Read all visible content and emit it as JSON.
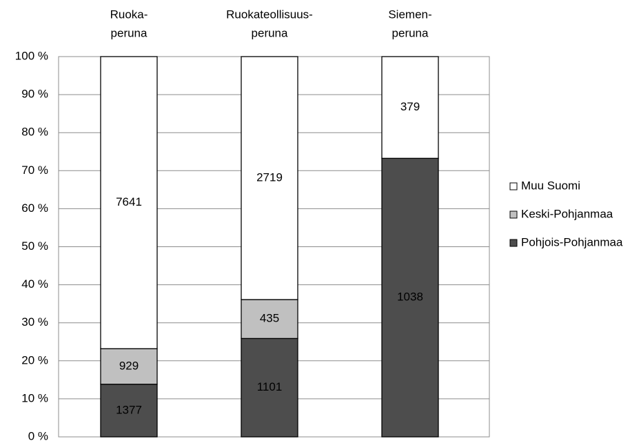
{
  "chart_data": {
    "type": "bar",
    "stacked": "percent",
    "categories": [
      [
        "Ruoka-",
        "peruna"
      ],
      [
        "Ruokateollisuus-",
        "peruna"
      ],
      [
        "Siemen-",
        "peruna"
      ]
    ],
    "series": [
      {
        "name": "Pohjois-Pohjanmaa",
        "color": "#4d4d4d",
        "values": [
          1377,
          1101,
          1038
        ]
      },
      {
        "name": "Keski-Pohjanmaa",
        "color": "#c0c0c0",
        "values": [
          929,
          435,
          null
        ]
      },
      {
        "name": "Muu Suomi",
        "color": "#ffffff",
        "values": [
          7641,
          2719,
          379
        ]
      }
    ],
    "ylim": [
      0,
      100
    ],
    "yticks": [
      {
        "value": 0,
        "label": "0 %"
      },
      {
        "value": 10,
        "label": "10 %"
      },
      {
        "value": 20,
        "label": "20 %"
      },
      {
        "value": 30,
        "label": "30 %"
      },
      {
        "value": 40,
        "label": "40 %"
      },
      {
        "value": 50,
        "label": "50 %"
      },
      {
        "value": 60,
        "label": "60 %"
      },
      {
        "value": 70,
        "label": "70 %"
      },
      {
        "value": 80,
        "label": "80 %"
      },
      {
        "value": 90,
        "label": "90 %"
      },
      {
        "value": 100,
        "label": "100 %"
      }
    ],
    "grid": true,
    "legend": "right"
  }
}
